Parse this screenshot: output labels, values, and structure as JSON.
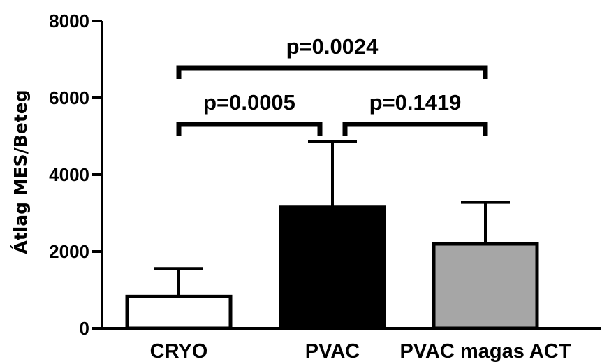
{
  "chart_data": {
    "type": "bar",
    "categories": [
      "CRYO",
      "PVAC",
      "PVAC magas  ACT"
    ],
    "values": [
      830,
      3150,
      2200
    ],
    "errors": [
      730,
      1720,
      1080
    ],
    "bar_colors": [
      "#ffffff",
      "#000000",
      "#a6a6a6"
    ],
    "ylabel": "Átlag MES/Beteg",
    "ylim": [
      0,
      8000
    ],
    "yticks": [
      0,
      2000,
      4000,
      6000,
      8000
    ],
    "ytick_labels": [
      "0",
      "2000",
      "4000",
      "6000",
      "8000"
    ],
    "grid": false,
    "comparisons": [
      {
        "from": 0,
        "to": 2,
        "label": "p=0.0024"
      },
      {
        "from": 0,
        "to": 1,
        "label": "p=0.0005"
      },
      {
        "from": 1,
        "to": 2,
        "label": "p=0.1419"
      }
    ]
  }
}
